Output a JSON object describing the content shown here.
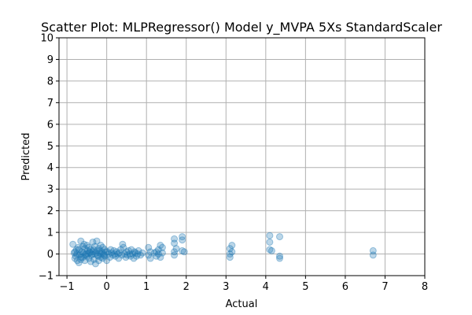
{
  "chart_data": {
    "type": "scatter",
    "title": "Scatter Plot: MLPRegressor() Model y_MVPA 5Xs StandardScaler",
    "xlabel": "Actual",
    "ylabel": "Predicted",
    "xlim": [
      -1.2,
      8
    ],
    "ylim": [
      -1,
      10
    ],
    "xticks": [
      -1,
      0,
      1,
      2,
      3,
      4,
      5,
      6,
      7,
      8
    ],
    "yticks": [
      -1,
      0,
      1,
      2,
      3,
      4,
      5,
      6,
      7,
      8,
      9,
      10
    ],
    "grid": true,
    "colors": {
      "marker": "#1f77b4",
      "grid": "#b0b0b0"
    },
    "marker_alpha": 0.3,
    "series": [
      {
        "points": [
          [
            -0.85,
            0.45
          ],
          [
            -0.8,
            -0.2
          ],
          [
            -0.8,
            0.1
          ],
          [
            -0.78,
            -0.1
          ],
          [
            -0.75,
            0.0
          ],
          [
            -0.72,
            0.3
          ],
          [
            -0.7,
            -0.4
          ],
          [
            -0.7,
            0.2
          ],
          [
            -0.68,
            -0.05
          ],
          [
            -0.65,
            0.6
          ],
          [
            -0.65,
            -0.25
          ],
          [
            -0.62,
            0.1
          ],
          [
            -0.6,
            0.35
          ],
          [
            -0.6,
            -0.15
          ],
          [
            -0.58,
            0.05
          ],
          [
            -0.55,
            -0.3
          ],
          [
            -0.55,
            0.25
          ],
          [
            -0.52,
            0.0
          ],
          [
            -0.5,
            0.4
          ],
          [
            -0.5,
            -0.1
          ],
          [
            -0.48,
            0.15
          ],
          [
            -0.45,
            -0.2
          ],
          [
            -0.45,
            0.3
          ],
          [
            -0.42,
            0.05
          ],
          [
            -0.4,
            -0.35
          ],
          [
            -0.4,
            0.2
          ],
          [
            -0.38,
            -0.05
          ],
          [
            -0.35,
            0.55
          ],
          [
            -0.35,
            0.1
          ],
          [
            -0.32,
            -0.25
          ],
          [
            -0.3,
            0.0
          ],
          [
            -0.3,
            0.35
          ],
          [
            -0.28,
            -0.45
          ],
          [
            -0.25,
            0.6
          ],
          [
            -0.25,
            0.15
          ],
          [
            -0.22,
            -0.1
          ],
          [
            -0.2,
            0.25
          ],
          [
            -0.2,
            -0.3
          ],
          [
            -0.18,
            0.05
          ],
          [
            -0.15,
            0.4
          ],
          [
            -0.15,
            -0.15
          ],
          [
            -0.12,
            0.1
          ],
          [
            -0.1,
            -0.2
          ],
          [
            -0.1,
            0.3
          ],
          [
            -0.08,
            0.0
          ],
          [
            -0.05,
            0.2
          ],
          [
            -0.05,
            -0.1
          ],
          [
            -0.02,
            0.1
          ],
          [
            -0.82,
            0.05
          ],
          [
            -0.76,
            0.2
          ],
          [
            -0.74,
            -0.3
          ],
          [
            -0.66,
            0.0
          ],
          [
            -0.64,
            -0.15
          ],
          [
            -0.57,
            0.45
          ],
          [
            -0.53,
            -0.05
          ],
          [
            -0.47,
            0.0
          ],
          [
            -0.43,
            0.1
          ],
          [
            -0.37,
            0.0
          ],
          [
            -0.33,
            0.2
          ],
          [
            -0.27,
            0.05
          ],
          [
            -0.23,
            -0.05
          ],
          [
            -0.17,
            0.15
          ],
          [
            -0.13,
            0.0
          ],
          [
            -0.07,
            -0.05
          ],
          [
            0.0,
            -0.3
          ],
          [
            0.02,
            0.1
          ],
          [
            0.05,
            0.0
          ],
          [
            0.08,
            -0.15
          ],
          [
            0.1,
            0.2
          ],
          [
            0.12,
            0.05
          ],
          [
            0.15,
            -0.05
          ],
          [
            0.18,
            0.15
          ],
          [
            0.2,
            0.0
          ],
          [
            0.22,
            -0.1
          ],
          [
            0.25,
            0.1
          ],
          [
            0.28,
            0.0
          ],
          [
            0.3,
            -0.2
          ],
          [
            0.32,
            0.05
          ],
          [
            0.35,
            0.2
          ],
          [
            0.38,
            -0.05
          ],
          [
            0.4,
            0.45
          ],
          [
            0.42,
            0.3
          ],
          [
            0.45,
            0.0
          ],
          [
            0.48,
            -0.15
          ],
          [
            0.5,
            0.1
          ],
          [
            0.52,
            -0.05
          ],
          [
            0.55,
            0.15
          ],
          [
            0.58,
            0.0
          ],
          [
            0.6,
            -0.1
          ],
          [
            0.62,
            0.2
          ],
          [
            0.65,
            0.0
          ],
          [
            0.68,
            -0.2
          ],
          [
            0.7,
            0.1
          ],
          [
            0.72,
            0.05
          ],
          [
            0.75,
            -0.1
          ],
          [
            0.78,
            0.0
          ],
          [
            0.8,
            0.15
          ],
          [
            0.85,
            -0.05
          ],
          [
            0.9,
            0.05
          ],
          [
            1.05,
            0.3
          ],
          [
            1.05,
            -0.05
          ],
          [
            1.1,
            0.1
          ],
          [
            1.1,
            -0.2
          ],
          [
            1.2,
            0.05
          ],
          [
            1.25,
            0.1
          ],
          [
            1.25,
            -0.1
          ],
          [
            1.3,
            0.2
          ],
          [
            1.3,
            0.0
          ],
          [
            1.35,
            0.4
          ],
          [
            1.35,
            -0.15
          ],
          [
            1.4,
            0.05
          ],
          [
            1.4,
            0.3
          ],
          [
            1.7,
            0.7
          ],
          [
            1.7,
            0.5
          ],
          [
            1.7,
            0.1
          ],
          [
            1.7,
            -0.05
          ],
          [
            1.75,
            0.25
          ],
          [
            1.9,
            0.8
          ],
          [
            1.9,
            0.65
          ],
          [
            1.9,
            0.15
          ],
          [
            1.95,
            0.1
          ],
          [
            3.1,
            0.25
          ],
          [
            3.1,
            0.0
          ],
          [
            3.1,
            -0.15
          ],
          [
            3.15,
            0.4
          ],
          [
            3.15,
            0.1
          ],
          [
            4.1,
            0.85
          ],
          [
            4.1,
            0.55
          ],
          [
            4.1,
            0.2
          ],
          [
            4.15,
            0.15
          ],
          [
            4.35,
            0.8
          ],
          [
            4.35,
            -0.1
          ],
          [
            4.35,
            -0.2
          ],
          [
            6.7,
            0.15
          ],
          [
            6.7,
            -0.05
          ]
        ]
      }
    ]
  }
}
